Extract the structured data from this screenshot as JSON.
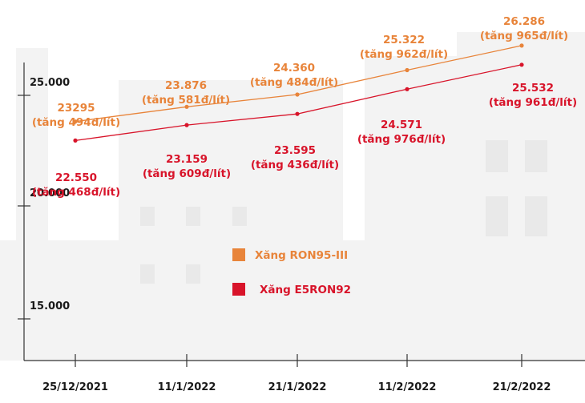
{
  "chart_data": {
    "type": "line",
    "title": "",
    "xlabel": "",
    "ylabel": "",
    "categories": [
      "25/12/2021",
      "11/1/2022",
      "21/1/2022",
      "11/2/2022",
      "21/2/2022"
    ],
    "y_ticks": [
      "15.000",
      "20.000",
      "25.000"
    ],
    "ylim": [
      13000,
      27000
    ],
    "grid": false,
    "legend_position": "center",
    "series": [
      {
        "name": "Xăng RON95-III",
        "color": "#e8843a",
        "values": [
          23295,
          23876,
          24360,
          25322,
          26286
        ],
        "value_labels": [
          "23295",
          "23.876",
          "24.360",
          "25.322",
          "26.286"
        ],
        "change_labels": [
          "(tăng 494đ/lít)",
          "(tăng 581đ/lít)",
          "(tăng 484đ/lít)",
          "(tăng 962đ/lít)",
          "(tăng 965đ/lít)"
        ]
      },
      {
        "name": "Xăng E5RON92",
        "color": "#d8142a",
        "values": [
          22550,
          23159,
          23595,
          24571,
          25532
        ],
        "value_labels": [
          "22.550",
          "23.159",
          "23.595",
          "24.571",
          "25.532"
        ],
        "change_labels": [
          "(tăng 468đ/lít)",
          "(tăng 609đ/lít)",
          "(tăng 436đ/lít)",
          "(tăng 976đ/lít)",
          "(tăng 961đ/lít)"
        ]
      }
    ]
  }
}
